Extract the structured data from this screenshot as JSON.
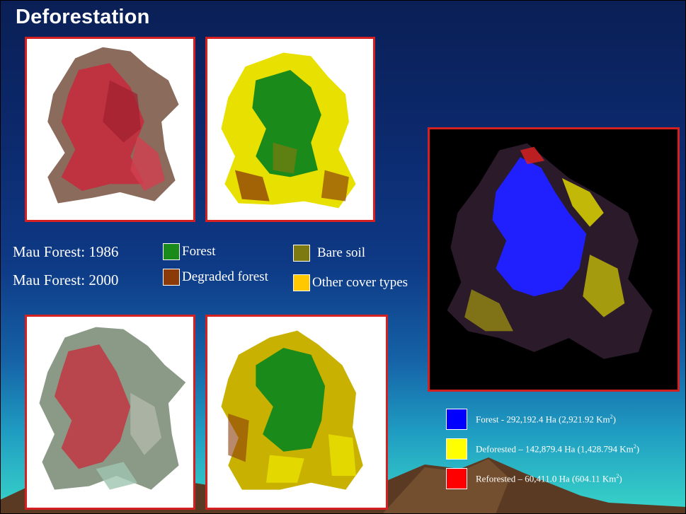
{
  "slide": {
    "title": "Deforestation"
  },
  "captions": {
    "y1986": "Mau Forest: 1986",
    "y2000": "Mau Forest: 2000"
  },
  "legend_small": [
    {
      "label": "Forest",
      "color": "#1a8a1a"
    },
    {
      "label": "Degraded forest",
      "color": "#8b3a0a"
    },
    {
      "label": "Bare soil",
      "color": "#7c7a10"
    },
    {
      "label": "Other cover types",
      "color": "#ffc800"
    }
  ],
  "legend_change": [
    {
      "label": "Forest - 292,192.4 Ha (2,921.92 Km",
      "sup": "2",
      "close": ")",
      "color": "#0000ff"
    },
    {
      "label": "Deforested – 142,879.4 Ha (1,428.794 Km",
      "sup": "2",
      "close": ")",
      "color": "#ffff00"
    },
    {
      "label": "Reforested – 60,411.0 Ha (604.11 Km",
      "sup": "2",
      "close": ")",
      "color": "#ff0000"
    }
  ],
  "colors": {
    "panel_border": "#d42020",
    "false_color_red": "#c8283a",
    "false_color_grey": "#8a8f84",
    "forest_green": "#1a8a1a",
    "cover_yellow": "#e8e000"
  }
}
